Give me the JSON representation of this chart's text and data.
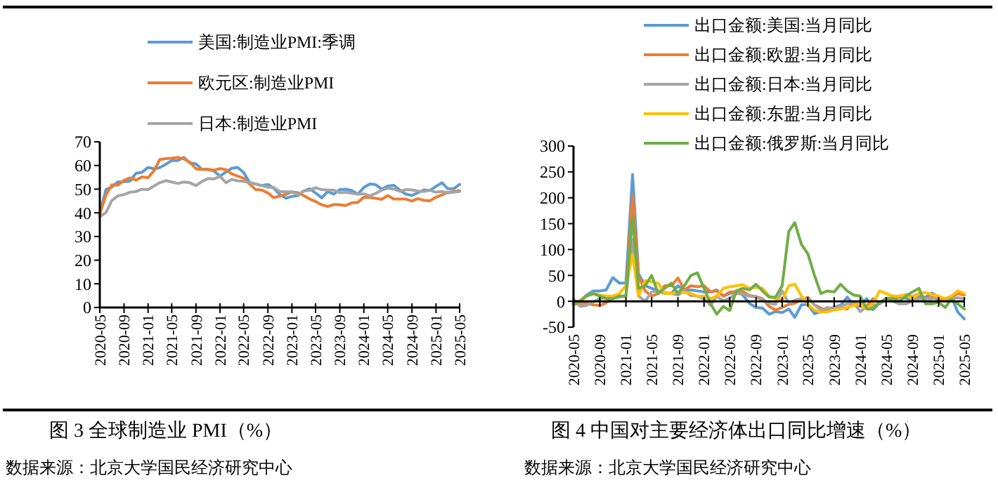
{
  "chart_data": [
    {
      "type": "line",
      "title": "图 3 全球制造业 PMI（%）",
      "annotations": [
        "数据来源：北京大学国民经济研究中心"
      ],
      "legend": "top",
      "grid": false,
      "marker": "none",
      "line_style": "solid",
      "x": [
        "2020-05",
        "2020-06",
        "2020-07",
        "2020-08",
        "2020-09",
        "2020-10",
        "2020-11",
        "2020-12",
        "2021-01",
        "2021-02",
        "2021-03",
        "2021-04",
        "2021-05",
        "2021-06",
        "2021-07",
        "2021-08",
        "2021-09",
        "2021-10",
        "2021-11",
        "2021-12",
        "2022-01",
        "2022-02",
        "2022-03",
        "2022-04",
        "2022-05",
        "2022-06",
        "2022-07",
        "2022-08",
        "2022-09",
        "2022-10",
        "2022-11",
        "2022-12",
        "2023-01",
        "2023-02",
        "2023-03",
        "2023-04",
        "2023-05",
        "2023-06",
        "2023-07",
        "2023-08",
        "2023-09",
        "2023-10",
        "2023-11",
        "2023-12",
        "2024-01",
        "2024-02",
        "2024-03",
        "2024-04",
        "2024-05",
        "2024-06",
        "2024-07",
        "2024-08",
        "2024-09",
        "2024-10",
        "2024-11",
        "2024-12",
        "2025-01",
        "2025-02",
        "2025-03",
        "2025-04",
        "2025-05"
      ],
      "ylim": [
        0,
        70
      ],
      "yticks": [
        0,
        10,
        20,
        30,
        40,
        50,
        60,
        70
      ],
      "xlim": [
        "2020-05",
        "2025-05"
      ],
      "xticks": [
        "2020-05",
        "2020-09",
        "2021-01",
        "2021-05",
        "2021-09",
        "2022-01",
        "2022-05",
        "2022-09",
        "2023-01",
        "2023-05",
        "2023-09",
        "2024-01",
        "2024-05",
        "2024-09",
        "2025-01",
        "2025-05"
      ],
      "series": [
        {
          "name": "美国:制造业PMI:季调",
          "color": "#5b9bd5",
          "values": [
            39.8,
            49.8,
            50.9,
            53.1,
            53.2,
            53.4,
            56.7,
            57.1,
            59.2,
            58.6,
            59.1,
            60.5,
            62.1,
            62.1,
            63.4,
            61.1,
            60.7,
            58.4,
            58.3,
            57.7,
            55.5,
            57.3,
            58.8,
            59.2,
            57.0,
            52.7,
            52.2,
            51.5,
            52.0,
            50.4,
            47.7,
            46.2,
            46.9,
            47.3,
            49.2,
            50.2,
            48.4,
            46.3,
            49.0,
            47.9,
            49.8,
            50.0,
            49.4,
            47.9,
            50.7,
            52.2,
            51.9,
            50.0,
            51.3,
            51.6,
            49.6,
            47.9,
            47.3,
            48.5,
            49.7,
            49.4,
            51.2,
            52.7,
            50.2,
            50.2,
            52.0
          ]
        },
        {
          "name": "欧元区:制造业PMI",
          "color": "#ed7d31",
          "values": [
            39.4,
            47.4,
            51.8,
            51.7,
            53.7,
            54.8,
            53.8,
            55.2,
            54.8,
            57.9,
            62.5,
            62.9,
            63.1,
            63.4,
            62.8,
            61.4,
            58.6,
            58.3,
            58.4,
            58.0,
            58.7,
            58.2,
            56.5,
            55.5,
            54.6,
            52.1,
            49.8,
            49.6,
            48.4,
            46.4,
            47.1,
            47.8,
            48.8,
            48.5,
            47.3,
            45.8,
            44.8,
            43.4,
            42.7,
            43.5,
            43.4,
            43.1,
            44.2,
            44.4,
            46.6,
            46.5,
            46.1,
            45.7,
            47.3,
            45.8,
            45.8,
            45.8,
            45.0,
            46.0,
            45.2,
            45.1,
            46.6,
            47.6,
            48.6,
            49.0,
            49.4
          ]
        },
        {
          "name": "日本:制造业PMI",
          "color": "#a5a5a5",
          "values": [
            38.4,
            40.1,
            45.2,
            47.2,
            47.7,
            48.7,
            49.0,
            50.0,
            49.8,
            51.4,
            52.7,
            53.6,
            53.0,
            52.4,
            53.0,
            52.7,
            51.5,
            53.2,
            54.5,
            54.3,
            55.4,
            52.7,
            54.1,
            53.5,
            53.3,
            52.7,
            52.1,
            51.5,
            50.8,
            50.7,
            49.0,
            48.9,
            48.9,
            47.7,
            49.2,
            49.5,
            50.6,
            49.8,
            49.6,
            49.6,
            48.5,
            48.7,
            48.3,
            47.9,
            48.0,
            47.2,
            48.2,
            49.6,
            50.4,
            50.0,
            49.1,
            49.8,
            49.7,
            49.2,
            49.0,
            49.6,
            48.7,
            49.0,
            48.4,
            48.7,
            49.0
          ]
        }
      ]
    },
    {
      "type": "line",
      "title": "图 4 中国对主要经济体出口同比增速（%）",
      "annotations": [
        "数据来源：北京大学国民经济研究中心"
      ],
      "legend": "top",
      "grid": false,
      "marker": "none",
      "line_style": "solid",
      "x": [
        "2020-05",
        "2020-06",
        "2020-07",
        "2020-08",
        "2020-09",
        "2020-10",
        "2020-11",
        "2020-12",
        "2021-01",
        "2021-02",
        "2021-03",
        "2021-04",
        "2021-05",
        "2021-06",
        "2021-07",
        "2021-08",
        "2021-09",
        "2021-10",
        "2021-11",
        "2021-12",
        "2022-01",
        "2022-02",
        "2022-03",
        "2022-04",
        "2022-05",
        "2022-06",
        "2022-07",
        "2022-08",
        "2022-09",
        "2022-10",
        "2022-11",
        "2022-12",
        "2023-01",
        "2023-02",
        "2023-03",
        "2023-04",
        "2023-05",
        "2023-06",
        "2023-07",
        "2023-08",
        "2023-09",
        "2023-10",
        "2023-11",
        "2023-12",
        "2024-01",
        "2024-02",
        "2024-03",
        "2024-04",
        "2024-05",
        "2024-06",
        "2024-07",
        "2024-08",
        "2024-09",
        "2024-10",
        "2024-11",
        "2024-12",
        "2025-01",
        "2025-02",
        "2025-03",
        "2025-04",
        "2025-05"
      ],
      "ylim": [
        -50,
        300
      ],
      "yticks": [
        -50,
        0,
        50,
        100,
        150,
        200,
        250,
        300
      ],
      "xlim": [
        "2020-05",
        "2025-05"
      ],
      "xticks": [
        "2020-05",
        "2020-09",
        "2021-01",
        "2021-05",
        "2021-09",
        "2022-01",
        "2022-05",
        "2022-09",
        "2023-01",
        "2023-05",
        "2023-09",
        "2024-01",
        "2024-05",
        "2024-09",
        "2025-01",
        "2025-05"
      ],
      "series": [
        {
          "name": "出口金额:美国:当月同比",
          "color": "#5b9bd5",
          "values": [
            -1,
            1,
            12,
            20,
            20,
            22,
            46,
            35,
            35,
            245,
            53,
            30,
            25,
            20,
            15,
            15,
            30,
            20,
            22,
            20,
            18,
            18,
            22,
            10,
            15,
            19,
            12,
            -4,
            -12,
            -13,
            -25,
            -20,
            -22,
            -15,
            -31,
            -7,
            -6,
            -24,
            -20,
            -18,
            -11,
            -8,
            8,
            -7,
            -5,
            5,
            -16,
            -3,
            3,
            5,
            8,
            6,
            3,
            8,
            8,
            16,
            8,
            2,
            9,
            -21,
            -34
          ]
        },
        {
          "name": "出口金额:欧盟:当月同比",
          "color": "#ed7d31",
          "values": [
            -6,
            -5,
            -3,
            -7,
            -8,
            -3,
            8,
            10,
            10,
            205,
            48,
            20,
            10,
            15,
            30,
            30,
            45,
            22,
            30,
            28,
            30,
            18,
            20,
            10,
            18,
            19,
            19,
            11,
            9,
            5,
            -10,
            -17,
            -12,
            -6,
            -4,
            3,
            8,
            -7,
            -13,
            -19,
            -12,
            -12,
            -15,
            -1,
            -10,
            -9,
            5,
            -4,
            6,
            6,
            9,
            13,
            8,
            15,
            5,
            8,
            3,
            1,
            8,
            15,
            12
          ]
        },
        {
          "name": "出口金额:日本:当月同比",
          "color": "#a5a5a5",
          "values": [
            5,
            -10,
            -8,
            -1,
            5,
            8,
            7,
            8,
            10,
            120,
            10,
            0,
            18,
            20,
            17,
            15,
            12,
            20,
            11,
            10,
            5,
            -8,
            10,
            1,
            6,
            15,
            14,
            10,
            8,
            3,
            -4,
            -6,
            20,
            -4,
            2,
            5,
            6,
            -7,
            -17,
            -12,
            -14,
            -10,
            -5,
            -3,
            -20,
            -10,
            -8,
            -5,
            3,
            0,
            -5,
            -5,
            0,
            5,
            5,
            5,
            8,
            5,
            5,
            7,
            5
          ]
        },
        {
          "name": "出口金额:东盟:当月同比",
          "color": "#ffc000",
          "values": [
            -5,
            2,
            10,
            15,
            12,
            10,
            10,
            15,
            30,
            90,
            10,
            40,
            38,
            35,
            15,
            15,
            18,
            17,
            15,
            10,
            10,
            5,
            10,
            25,
            28,
            30,
            32,
            25,
            27,
            25,
            10,
            5,
            2,
            30,
            33,
            10,
            -6,
            -17,
            -21,
            -20,
            -17,
            -15,
            -12,
            -8,
            -5,
            -15,
            -3,
            20,
            15,
            10,
            10,
            12,
            5,
            15,
            17,
            13,
            10,
            5,
            10,
            20,
            15
          ]
        },
        {
          "name": "出口金额:俄罗斯:当月同比",
          "color": "#70ad47",
          "values": [
            -5,
            0,
            10,
            15,
            10,
            5,
            5,
            10,
            10,
            165,
            25,
            30,
            50,
            15,
            25,
            35,
            15,
            30,
            50,
            55,
            25,
            -5,
            -25,
            -10,
            -18,
            20,
            25,
            22,
            33,
            20,
            8,
            8,
            30,
            135,
            152,
            110,
            92,
            50,
            15,
            20,
            18,
            33,
            20,
            12,
            10,
            -15,
            -15,
            -2,
            5,
            5,
            0,
            10,
            18,
            25,
            -5,
            -5,
            -2,
            -12,
            4,
            -5,
            -15
          ]
        }
      ]
    }
  ]
}
